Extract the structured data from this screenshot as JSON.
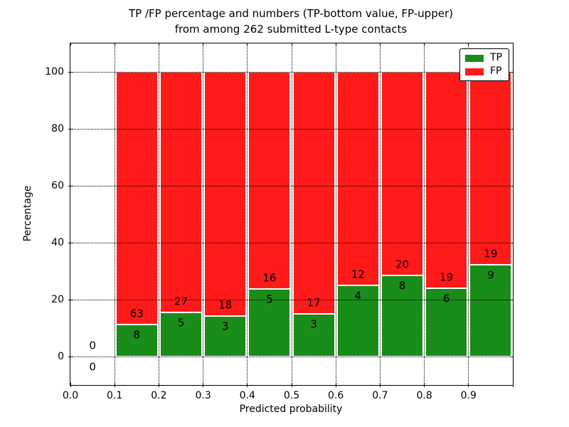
{
  "title": {
    "line1": "TP /FP percentage and numbers (TP-bottom value, FP-upper)",
    "line2": "from among 262 submitted L-type contacts"
  },
  "axes": {
    "xlabel": "Predicted probability",
    "ylabel": "Percentage",
    "x_ticks": [
      {
        "value": 0.0,
        "label": "0.0"
      },
      {
        "value": 0.1,
        "label": "0.1"
      },
      {
        "value": 0.2,
        "label": "0.2"
      },
      {
        "value": 0.3,
        "label": "0.3"
      },
      {
        "value": 0.4,
        "label": "0.4"
      },
      {
        "value": 0.5,
        "label": "0.5"
      },
      {
        "value": 0.6,
        "label": "0.6"
      },
      {
        "value": 0.7,
        "label": "0.7"
      },
      {
        "value": 0.8,
        "label": "0.8"
      },
      {
        "value": 0.9,
        "label": "0.9"
      }
    ],
    "y_ticks": [
      {
        "value": 0,
        "label": "0"
      },
      {
        "value": 20,
        "label": "20"
      },
      {
        "value": 40,
        "label": "40"
      },
      {
        "value": 60,
        "label": "60"
      },
      {
        "value": 80,
        "label": "80"
      },
      {
        "value": 100,
        "label": "100"
      }
    ],
    "xlim": [
      0.0,
      1.0
    ],
    "ylim": [
      -10,
      110
    ],
    "grid": "dotted, drawn above bars"
  },
  "legend": {
    "position": "upper right",
    "entries": [
      {
        "label": "TP",
        "color": "#1a8c1a"
      },
      {
        "label": "FP",
        "color": "#ff1a1a"
      }
    ]
  },
  "chart_data": {
    "type": "bar",
    "stacked": true,
    "normalized_to_percent": true,
    "title": "TP /FP percentage and numbers (TP-bottom value, FP-upper) from among 262 submitted L-type contacts",
    "xlabel": "Predicted probability",
    "ylabel": "Percentage",
    "total_contacts": 262,
    "bin_width": 0.1,
    "bin_starts": [
      0.0,
      0.1,
      0.2,
      0.3,
      0.4,
      0.5,
      0.6,
      0.7,
      0.8,
      0.9
    ],
    "series": [
      {
        "name": "TP",
        "color": "#1a8c1a",
        "counts": [
          0,
          8,
          5,
          3,
          5,
          3,
          4,
          8,
          6,
          9
        ]
      },
      {
        "name": "FP",
        "color": "#ff1a1a",
        "counts": [
          0,
          63,
          27,
          18,
          16,
          17,
          12,
          20,
          19,
          19
        ]
      }
    ],
    "tp_percent_of_bin": [
      0,
      11.27,
      15.63,
      14.29,
      23.81,
      15.0,
      25.0,
      28.57,
      24.0,
      32.14
    ],
    "fp_percent_of_bin": [
      0,
      88.73,
      84.37,
      85.71,
      76.19,
      85.0,
      75.0,
      71.43,
      76.0,
      67.86
    ],
    "bar_top_percent": 100,
    "empty_bins_labeled_zero": [
      0.0
    ]
  }
}
